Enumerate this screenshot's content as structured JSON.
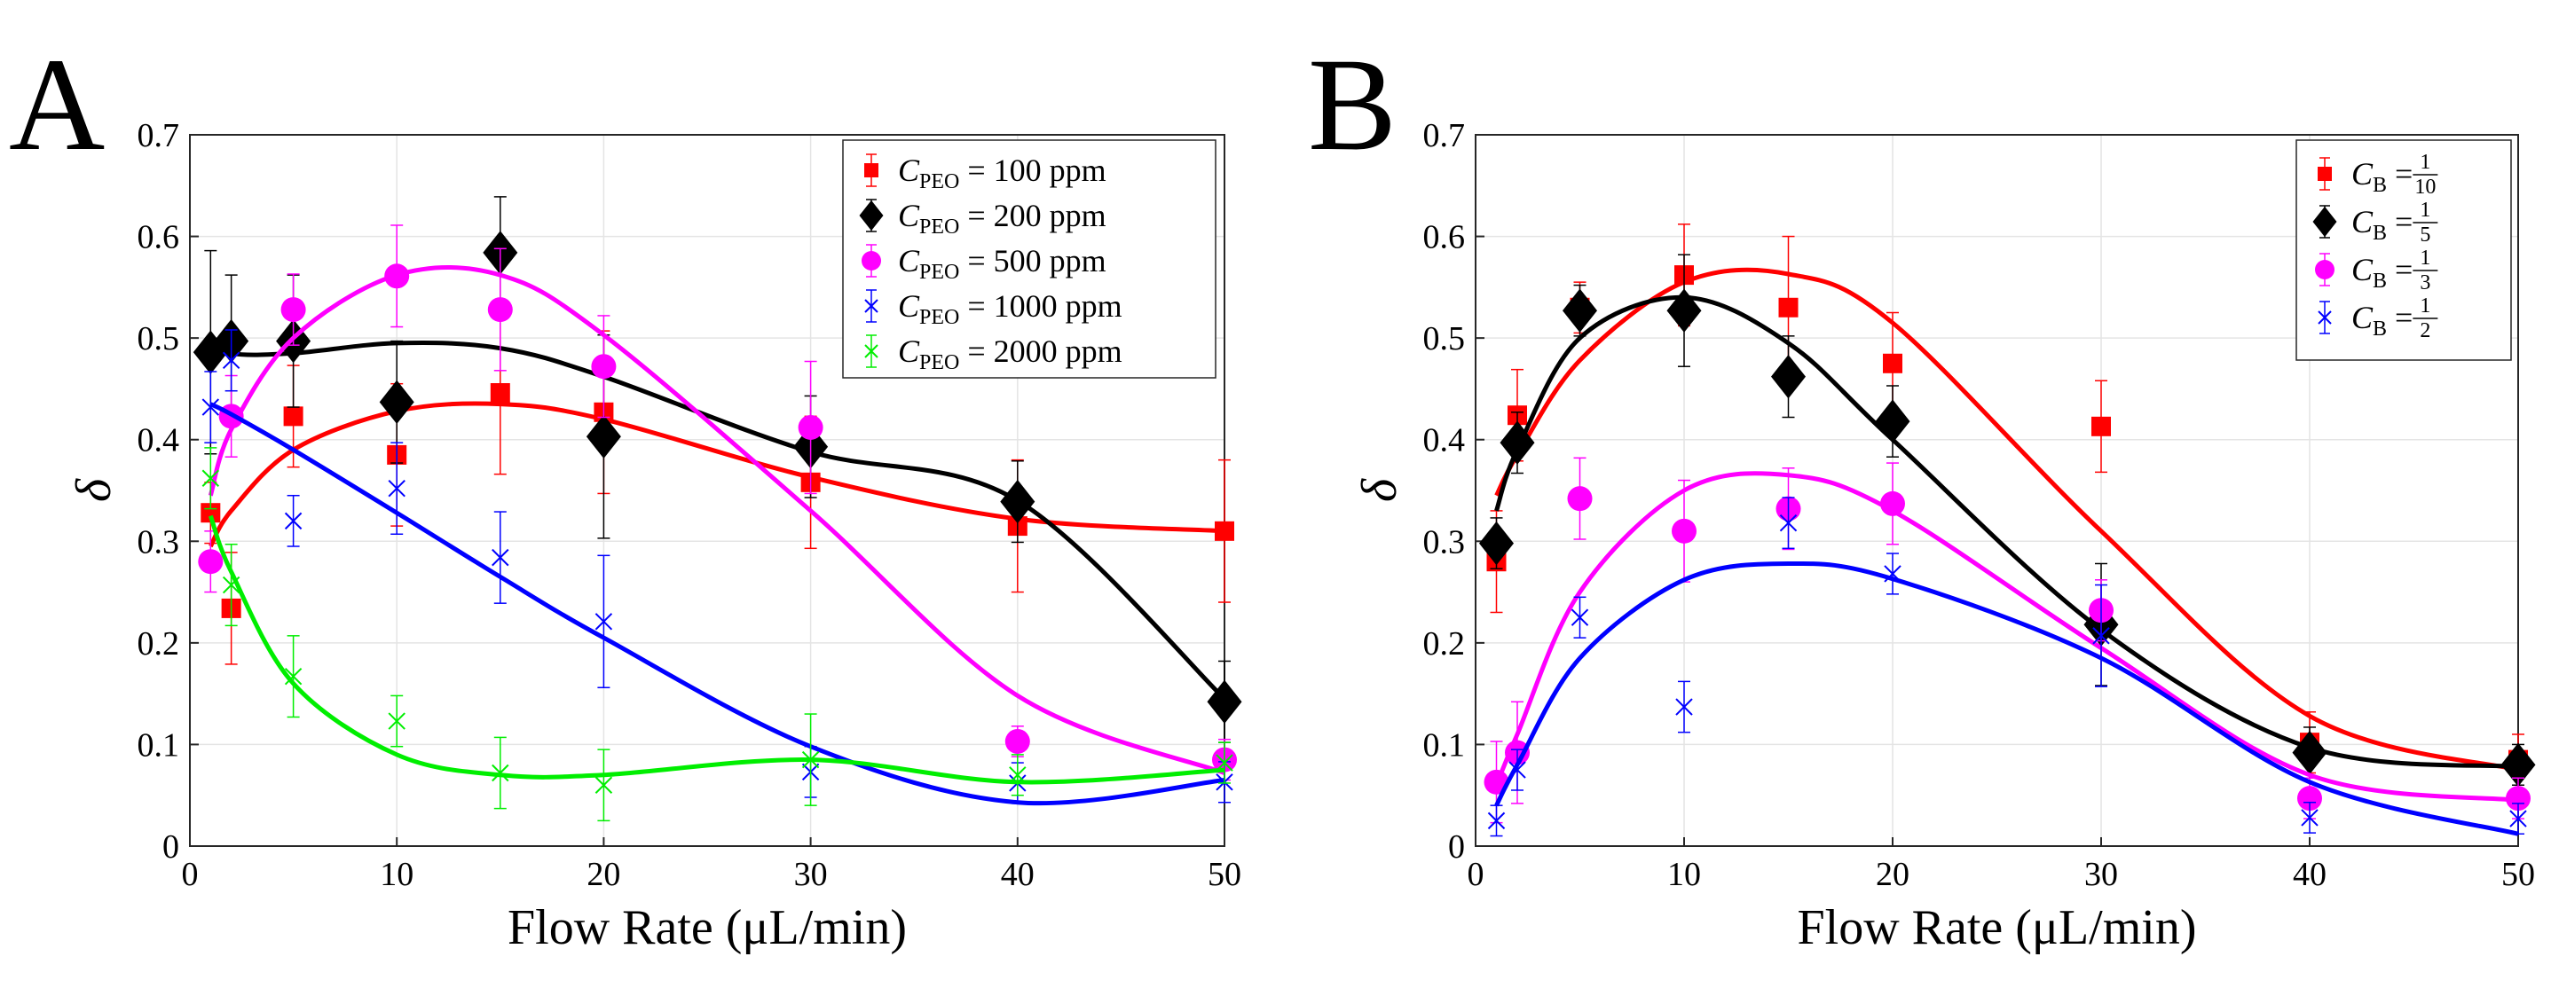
{
  "chart_data": [
    {
      "type": "scatter",
      "panel_label": "A",
      "xlabel": "Flow Rate (μL/min)",
      "ylabel": "δ",
      "xlim": [
        0,
        50
      ],
      "ylim": [
        0,
        0.7
      ],
      "xticks": [
        0,
        10,
        20,
        30,
        40,
        50
      ],
      "yticks": [
        0,
        0.1,
        0.2,
        0.3,
        0.4,
        0.5,
        0.6,
        0.7
      ],
      "xtick_labels": [
        "0",
        "10",
        "20",
        "30",
        "40",
        "50"
      ],
      "ytick_labels": [
        "0",
        "0.1",
        "0.2",
        "0.3",
        "0.4",
        "0.5",
        "0.6",
        "0.7"
      ],
      "grid": true,
      "legend_position": "top-right",
      "x": [
        1,
        2,
        5,
        10,
        15,
        20,
        30,
        40,
        50
      ],
      "series": [
        {
          "name": "PEO",
          "value_text": "100 ppm",
          "color": "#ff0000",
          "marker": "square",
          "values": [
            0.328,
            0.234,
            0.423,
            0.385,
            0.446,
            0.427,
            0.358,
            0.315,
            0.31
          ],
          "errors": [
            0.03,
            0.055,
            0.05,
            0.07,
            0.08,
            0.08,
            0.065,
            0.065,
            0.07
          ],
          "fit": [
            0.295,
            0.33,
            0.39,
            0.428,
            0.435,
            0.42,
            0.363,
            0.322,
            0.31
          ]
        },
        {
          "name": "PEO",
          "value_text": "200 ppm",
          "color": "#000000",
          "marker": "diamond",
          "values": [
            0.486,
            0.497,
            0.497,
            0.437,
            0.584,
            0.403,
            0.393,
            0.339,
            0.142
          ],
          "errors": [
            0.1,
            0.065,
            0.065,
            0.06,
            0.055,
            0.1,
            0.05,
            0.04,
            0.04
          ],
          "fit": [
            0.5,
            0.485,
            0.485,
            0.495,
            0.49,
            0.462,
            0.388,
            0.34,
            0.145
          ]
        },
        {
          "name": "PEO",
          "value_text": "500 ppm",
          "color": "#ff00ff",
          "marker": "circle",
          "values": [
            0.28,
            0.423,
            0.528,
            0.561,
            0.528,
            0.472,
            0.412,
            0.103,
            0.085
          ],
          "errors": [
            0.03,
            0.04,
            0.035,
            0.05,
            0.06,
            0.05,
            0.065,
            0.015,
            0.02
          ],
          "fit": [
            0.345,
            0.41,
            0.5,
            0.562,
            0.562,
            0.503,
            0.33,
            0.148,
            0.072
          ]
        },
        {
          "name": "PEO",
          "value_text": "1000 ppm",
          "color": "#0000ff",
          "marker": "x",
          "values": [
            0.432,
            0.478,
            0.32,
            0.352,
            0.284,
            0.221,
            0.073,
            0.062,
            0.063
          ],
          "errors": [
            0.035,
            0.03,
            0.025,
            0.045,
            0.045,
            0.065,
            0.025,
            0.02,
            0.02
          ],
          "fit": [
            0.435,
            0.425,
            0.39,
            0.328,
            0.265,
            0.205,
            0.098,
            0.043,
            0.065
          ]
        },
        {
          "name": "PEO",
          "value_text": "2000 ppm",
          "color": "#00ee00",
          "marker": "x",
          "values": [
            0.362,
            0.257,
            0.167,
            0.123,
            0.072,
            0.06,
            0.085,
            0.07,
            0.082
          ],
          "errors": [
            0.03,
            0.04,
            0.04,
            0.025,
            0.035,
            0.035,
            0.045,
            0.02,
            0.02
          ],
          "fit": [
            0.325,
            0.27,
            0.16,
            0.09,
            0.07,
            0.07,
            0.085,
            0.063,
            0.075
          ]
        }
      ]
    },
    {
      "type": "scatter",
      "panel_label": "B",
      "xlabel": "Flow Rate (μL/min)",
      "ylabel": "δ",
      "xlim": [
        0,
        50
      ],
      "ylim": [
        0,
        0.7
      ],
      "xticks": [
        0,
        10,
        20,
        30,
        40,
        50
      ],
      "yticks": [
        0,
        0.1,
        0.2,
        0.3,
        0.4,
        0.5,
        0.6,
        0.7
      ],
      "xtick_labels": [
        "0",
        "10",
        "20",
        "30",
        "40",
        "50"
      ],
      "ytick_labels": [
        "0",
        "0.1",
        "0.2",
        "0.3",
        "0.4",
        "0.5",
        "0.6",
        "0.7"
      ],
      "grid": true,
      "legend_position": "top-right",
      "x": [
        1,
        2,
        5,
        10,
        15,
        20,
        30,
        40,
        50
      ],
      "series": [
        {
          "name": "B",
          "num": "1",
          "den": "10",
          "color": "#ff0000",
          "marker": "square",
          "values": [
            0.28,
            0.424,
            0.53,
            0.562,
            0.53,
            0.475,
            0.413,
            0.102,
            0.085
          ],
          "errors": [
            0.05,
            0.045,
            0.025,
            0.05,
            0.07,
            0.05,
            0.045,
            0.03,
            0.025
          ],
          "fit": [
            0.345,
            0.385,
            0.478,
            0.555,
            0.563,
            0.515,
            0.31,
            0.128,
            0.075
          ]
        },
        {
          "name": "B",
          "num": "1",
          "den": "5",
          "color": "#000000",
          "marker": "diamond",
          "values": [
            0.298,
            0.397,
            0.527,
            0.527,
            0.462,
            0.418,
            0.218,
            0.092,
            0.08
          ],
          "errors": [
            0.025,
            0.03,
            0.025,
            0.055,
            0.04,
            0.035,
            0.06,
            0.025,
            0.02
          ],
          "fit": [
            0.33,
            0.39,
            0.5,
            0.54,
            0.495,
            0.4,
            0.213,
            0.097,
            0.078
          ]
        },
        {
          "name": "B",
          "num": "1",
          "den": "3",
          "color": "#ff00ff",
          "marker": "circle",
          "values": [
            0.063,
            0.092,
            0.342,
            0.31,
            0.332,
            0.337,
            0.232,
            0.047,
            0.047
          ],
          "errors": [
            0.04,
            0.05,
            0.04,
            0.05,
            0.04,
            0.04,
            0.03,
            0.02,
            0.02
          ],
          "fit": [
            0.06,
            0.11,
            0.25,
            0.35,
            0.365,
            0.33,
            0.195,
            0.07,
            0.045
          ]
        },
        {
          "name": "B",
          "num": "1",
          "den": "2",
          "color": "#0000ff",
          "marker": "x",
          "values": [
            0.025,
            0.075,
            0.225,
            0.137,
            0.318,
            0.268,
            0.207,
            0.028,
            0.027
          ],
          "errors": [
            0.015,
            0.02,
            0.02,
            0.025,
            0.025,
            0.02,
            0.05,
            0.015,
            0.015
          ],
          "fit": [
            0.04,
            0.08,
            0.185,
            0.262,
            0.278,
            0.263,
            0.185,
            0.063,
            0.012
          ]
        }
      ]
    }
  ]
}
